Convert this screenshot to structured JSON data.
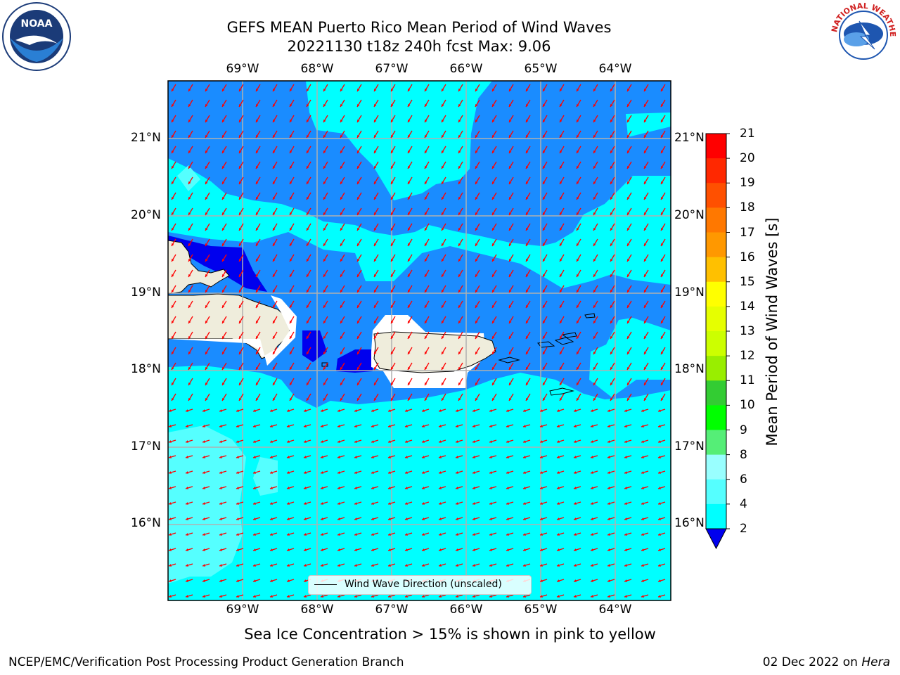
{
  "title": {
    "line1": "GEFS MEAN Puerto Rico Mean Period of Wind Waves",
    "line2": "20221130 t18z 240h fcst   Max: 9.06"
  },
  "map": {
    "lon_ticks": [
      "69°W",
      "68°W",
      "67°W",
      "66°W",
      "65°W",
      "64°W"
    ],
    "lat_ticks": [
      "21°N",
      "20°N",
      "19°N",
      "18°N",
      "17°N",
      "16°N"
    ],
    "legend_label": "Wind Wave Direction (unscaled)",
    "wave_direction": "toward south-southwest",
    "colors": {
      "ocean_light": "#00ffff",
      "ocean_mid": "#1a8cff",
      "ocean_dark": "#0000ee",
      "ocean_pale": "#55ffff",
      "land": "#efeddc",
      "arrows": "#ff0000"
    }
  },
  "colorbar": {
    "label": "Mean Period of Wind Waves [s]",
    "ticks": [
      "21",
      "20",
      "19",
      "18",
      "17",
      "16",
      "15",
      "14",
      "13",
      "12",
      "11",
      "10",
      "9",
      "8",
      "6",
      "4",
      "2"
    ],
    "colors": [
      "#ff0000",
      "#ff2800",
      "#ff5000",
      "#ff7800",
      "#ff9800",
      "#ffc000",
      "#ffff00",
      "#e6ff00",
      "#ccff00",
      "#99ee00",
      "#33cc33",
      "#00ff00",
      "#55ee77",
      "#99ffff",
      "#55ffff",
      "#00ffff",
      "#1a8cff"
    ],
    "extend_color": "#0000ee"
  },
  "subtitle": "Sea Ice Concentration > 15% is shown in pink to yellow",
  "footer": {
    "left": "NCEP/EMC/Verification Post Processing Product Generation Branch",
    "date": "02 Dec 2022 on ",
    "machine": "Hera"
  },
  "logos": {
    "noaa": "NOAA",
    "nws": "NATIONAL WEATHER SERVICE"
  }
}
